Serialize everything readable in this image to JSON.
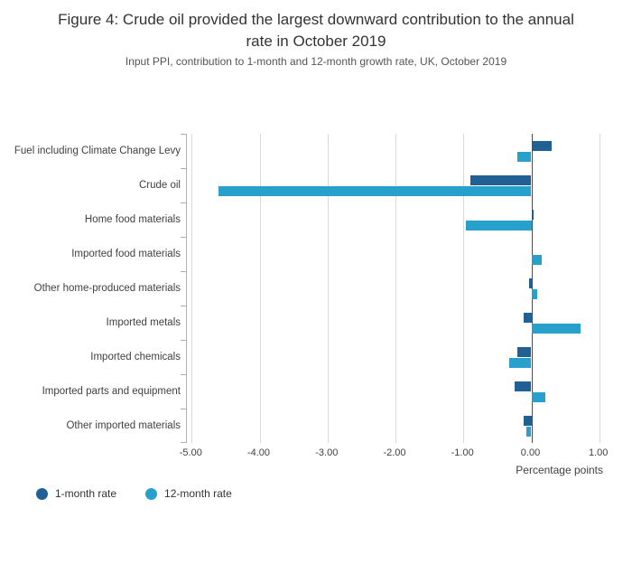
{
  "header": {
    "title": "Figure 4: Crude oil provided the largest downward contribution to the annual rate in October 2019",
    "subtitle": "Input PPI, contribution to 1-month and 12-month growth rate, UK, October 2019"
  },
  "chart_data": {
    "type": "bar",
    "orientation": "horizontal",
    "title": "Figure 4: Crude oil provided the largest downward contribution to the annual rate in October 2019",
    "subtitle": "Input PPI, contribution to 1-month and 12-month growth rate, UK, October 2019",
    "categories": [
      "Fuel including Climate Change Levy",
      "Crude oil",
      "Home food materials",
      "Imported food materials",
      "Other home-produced materials",
      "Imported metals",
      "Imported chemicals",
      "Imported parts and equipment",
      "Other imported materials"
    ],
    "series": [
      {
        "name": "1-month rate",
        "color": "#206095",
        "values": [
          0.3,
          -0.9,
          0.03,
          0.0,
          -0.04,
          -0.12,
          -0.2,
          -0.24,
          -0.12
        ]
      },
      {
        "name": "12-month rate",
        "color": "#27a0cc",
        "values": [
          -0.2,
          -4.6,
          -0.97,
          0.15,
          0.08,
          0.72,
          -0.33,
          0.2,
          -0.07
        ]
      }
    ],
    "xlabel": "Percentage points",
    "ylabel": "",
    "xlim": [
      -5.0,
      1.0
    ],
    "xticks": [
      -5,
      -4,
      -3,
      -2,
      -1,
      0,
      1
    ],
    "xtick_labels": [
      "-5.00",
      "-4.00",
      "-3.00",
      "-2.00",
      "-1.00",
      "0.00",
      "1.00"
    ],
    "grid": true,
    "legend_position": "bottom-left"
  }
}
